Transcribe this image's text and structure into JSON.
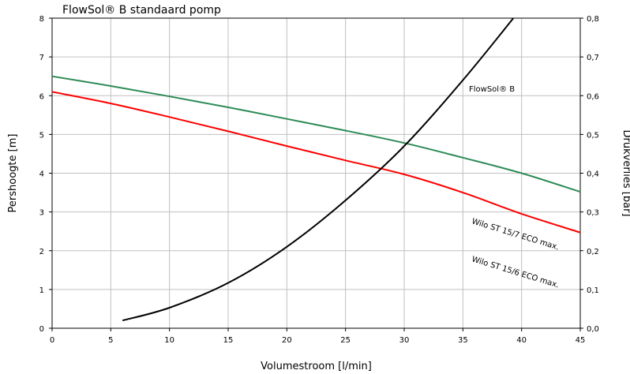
{
  "chart_data": {
    "type": "line",
    "title": "FlowSol® B standaard pomp",
    "xlabel": "Volumestroom [l/min]",
    "ylabel": "Pershoogte [m]",
    "y2label": "Drukverlies [bar]",
    "xlim": [
      0,
      45
    ],
    "ylim": [
      0,
      8
    ],
    "y2lim": [
      0,
      0.8
    ],
    "grid": true,
    "x_ticks": [
      "0",
      "5",
      "10",
      "15",
      "20",
      "25",
      "30",
      "35",
      "40",
      "45"
    ],
    "y_ticks": [
      "0",
      "1",
      "2",
      "3",
      "4",
      "5",
      "6",
      "7",
      "8"
    ],
    "y2_ticks": [
      "0,0",
      "0,1",
      "0,2",
      "0,3",
      "0,4",
      "0,5",
      "0,6",
      "0,7",
      "0,8"
    ],
    "series": [
      {
        "name": "Wilo ST 15/7 ECO max.",
        "axis": "left",
        "color": "#2e8b57",
        "x": [
          0,
          5,
          10,
          15,
          20,
          25,
          30,
          35,
          40,
          45
        ],
        "y": [
          6.5,
          6.25,
          5.98,
          5.7,
          5.4,
          5.1,
          4.78,
          4.4,
          4.0,
          3.52
        ]
      },
      {
        "name": "Wilo ST 15/6 ECO max.",
        "axis": "left",
        "color": "#ff0000",
        "x": [
          0,
          5,
          10,
          15,
          20,
          25,
          30,
          35,
          40,
          45
        ],
        "y": [
          6.1,
          5.8,
          5.45,
          5.08,
          4.7,
          4.33,
          3.97,
          3.5,
          2.95,
          2.47
        ]
      },
      {
        "name": "FlowSol® B",
        "axis": "right",
        "color": "#000000",
        "x": [
          6,
          10,
          15,
          20,
          25,
          30,
          35,
          39.3
        ],
        "y": [
          0.02,
          0.053,
          0.117,
          0.21,
          0.33,
          0.47,
          0.64,
          0.8
        ]
      }
    ]
  }
}
